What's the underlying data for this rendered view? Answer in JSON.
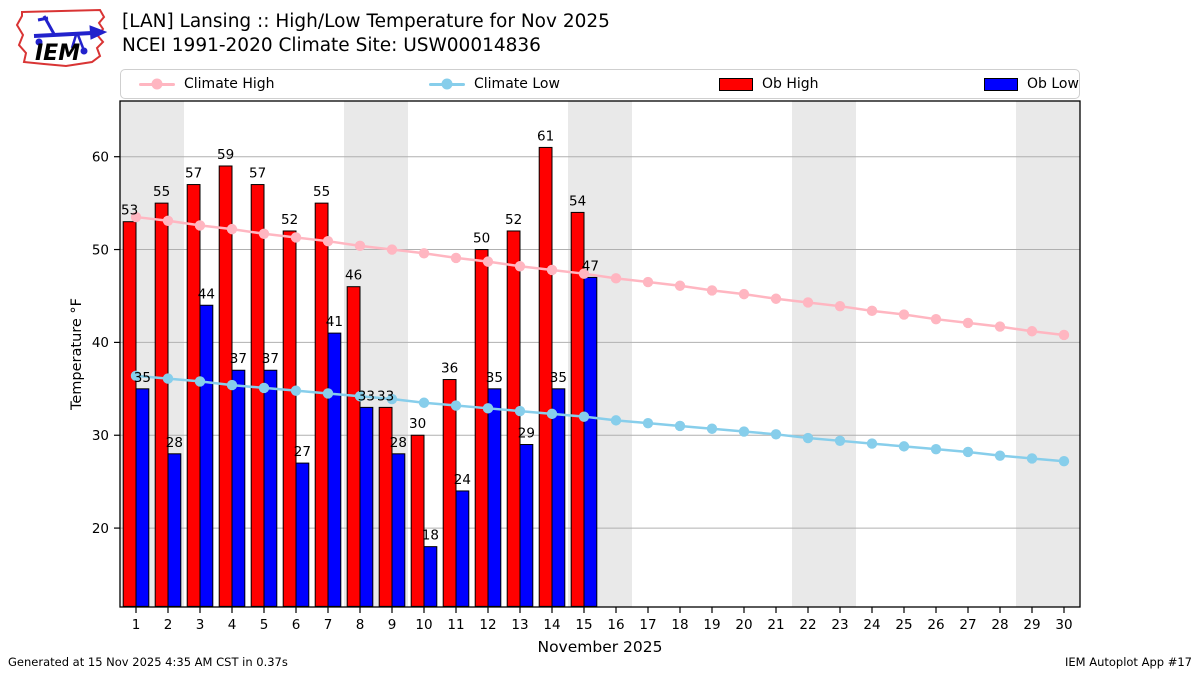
{
  "header": {
    "logo_text": "IEM",
    "title_line1": "[LAN] Lansing :: High/Low Temperature for Nov 2025",
    "title_line2": "NCEI 1991-2020 Climate Site: USW00014836"
  },
  "footer": {
    "generated": "Generated at 15 Nov 2025 4:35 AM CST in 0.37s",
    "app": "IEM Autoplot App #17"
  },
  "chart_data": {
    "type": "bar",
    "title": "[LAN] Lansing :: High/Low Temperature for Nov 2025",
    "subtitle": "NCEI 1991-2020 Climate Site: USW00014836",
    "xlabel": "November 2025",
    "ylabel": "Temperature °F",
    "x": [
      1,
      2,
      3,
      4,
      5,
      6,
      7,
      8,
      9,
      10,
      11,
      12,
      13,
      14,
      15,
      16,
      17,
      18,
      19,
      20,
      21,
      22,
      23,
      24,
      25,
      26,
      27,
      28,
      29,
      30
    ],
    "ylim": [
      11.5,
      66.0
    ],
    "yticks": [
      20,
      30,
      40,
      50,
      60
    ],
    "grid": "horizontal",
    "legend_position": "top",
    "weekend_bands": [
      [
        1,
        2
      ],
      [
        8,
        9
      ],
      [
        15,
        16
      ],
      [
        22,
        23
      ],
      [
        29,
        30
      ]
    ],
    "legend": [
      {
        "label": "Climate High",
        "swatch": "line",
        "color": "#ffb6c1"
      },
      {
        "label": "Climate Low",
        "swatch": "line",
        "color": "#87ceeb"
      },
      {
        "label": "Ob High",
        "swatch": "rect",
        "color": "#ff0000"
      },
      {
        "label": "Ob Low",
        "swatch": "rect",
        "color": "#0000ff"
      }
    ],
    "series": [
      {
        "name": "Ob High",
        "type": "bar",
        "color": "#ff0000",
        "values": [
          53,
          55,
          57,
          59,
          57,
          52,
          55,
          46,
          33,
          30,
          36,
          50,
          52,
          61,
          54
        ]
      },
      {
        "name": "Ob Low",
        "type": "bar",
        "color": "#0000ff",
        "values": [
          35,
          28,
          44,
          37,
          37,
          27,
          41,
          33,
          28,
          18,
          24,
          35,
          29,
          35,
          47
        ]
      },
      {
        "name": "Climate High",
        "type": "line",
        "color": "#ffb6c1",
        "values": [
          53.5,
          53.1,
          52.6,
          52.2,
          51.7,
          51.3,
          50.9,
          50.4,
          50.0,
          49.6,
          49.1,
          48.7,
          48.2,
          47.8,
          47.4,
          46.9,
          46.5,
          46.1,
          45.6,
          45.2,
          44.7,
          44.3,
          43.9,
          43.4,
          43.0,
          42.5,
          42.1,
          41.7,
          41.2,
          40.8
        ]
      },
      {
        "name": "Climate Low",
        "type": "line",
        "color": "#87ceeb",
        "values": [
          36.4,
          36.1,
          35.8,
          35.4,
          35.1,
          34.8,
          34.5,
          34.2,
          33.9,
          33.5,
          33.2,
          32.9,
          32.6,
          32.3,
          32.0,
          31.6,
          31.3,
          31.0,
          30.7,
          30.4,
          30.1,
          29.7,
          29.4,
          29.1,
          28.8,
          28.5,
          28.2,
          27.8,
          27.5,
          27.2
        ]
      }
    ],
    "colors": {
      "band": "#e9e9e9",
      "grid": "#b0b0b0",
      "spine": "#000000",
      "bar_edge": "#000000"
    }
  }
}
